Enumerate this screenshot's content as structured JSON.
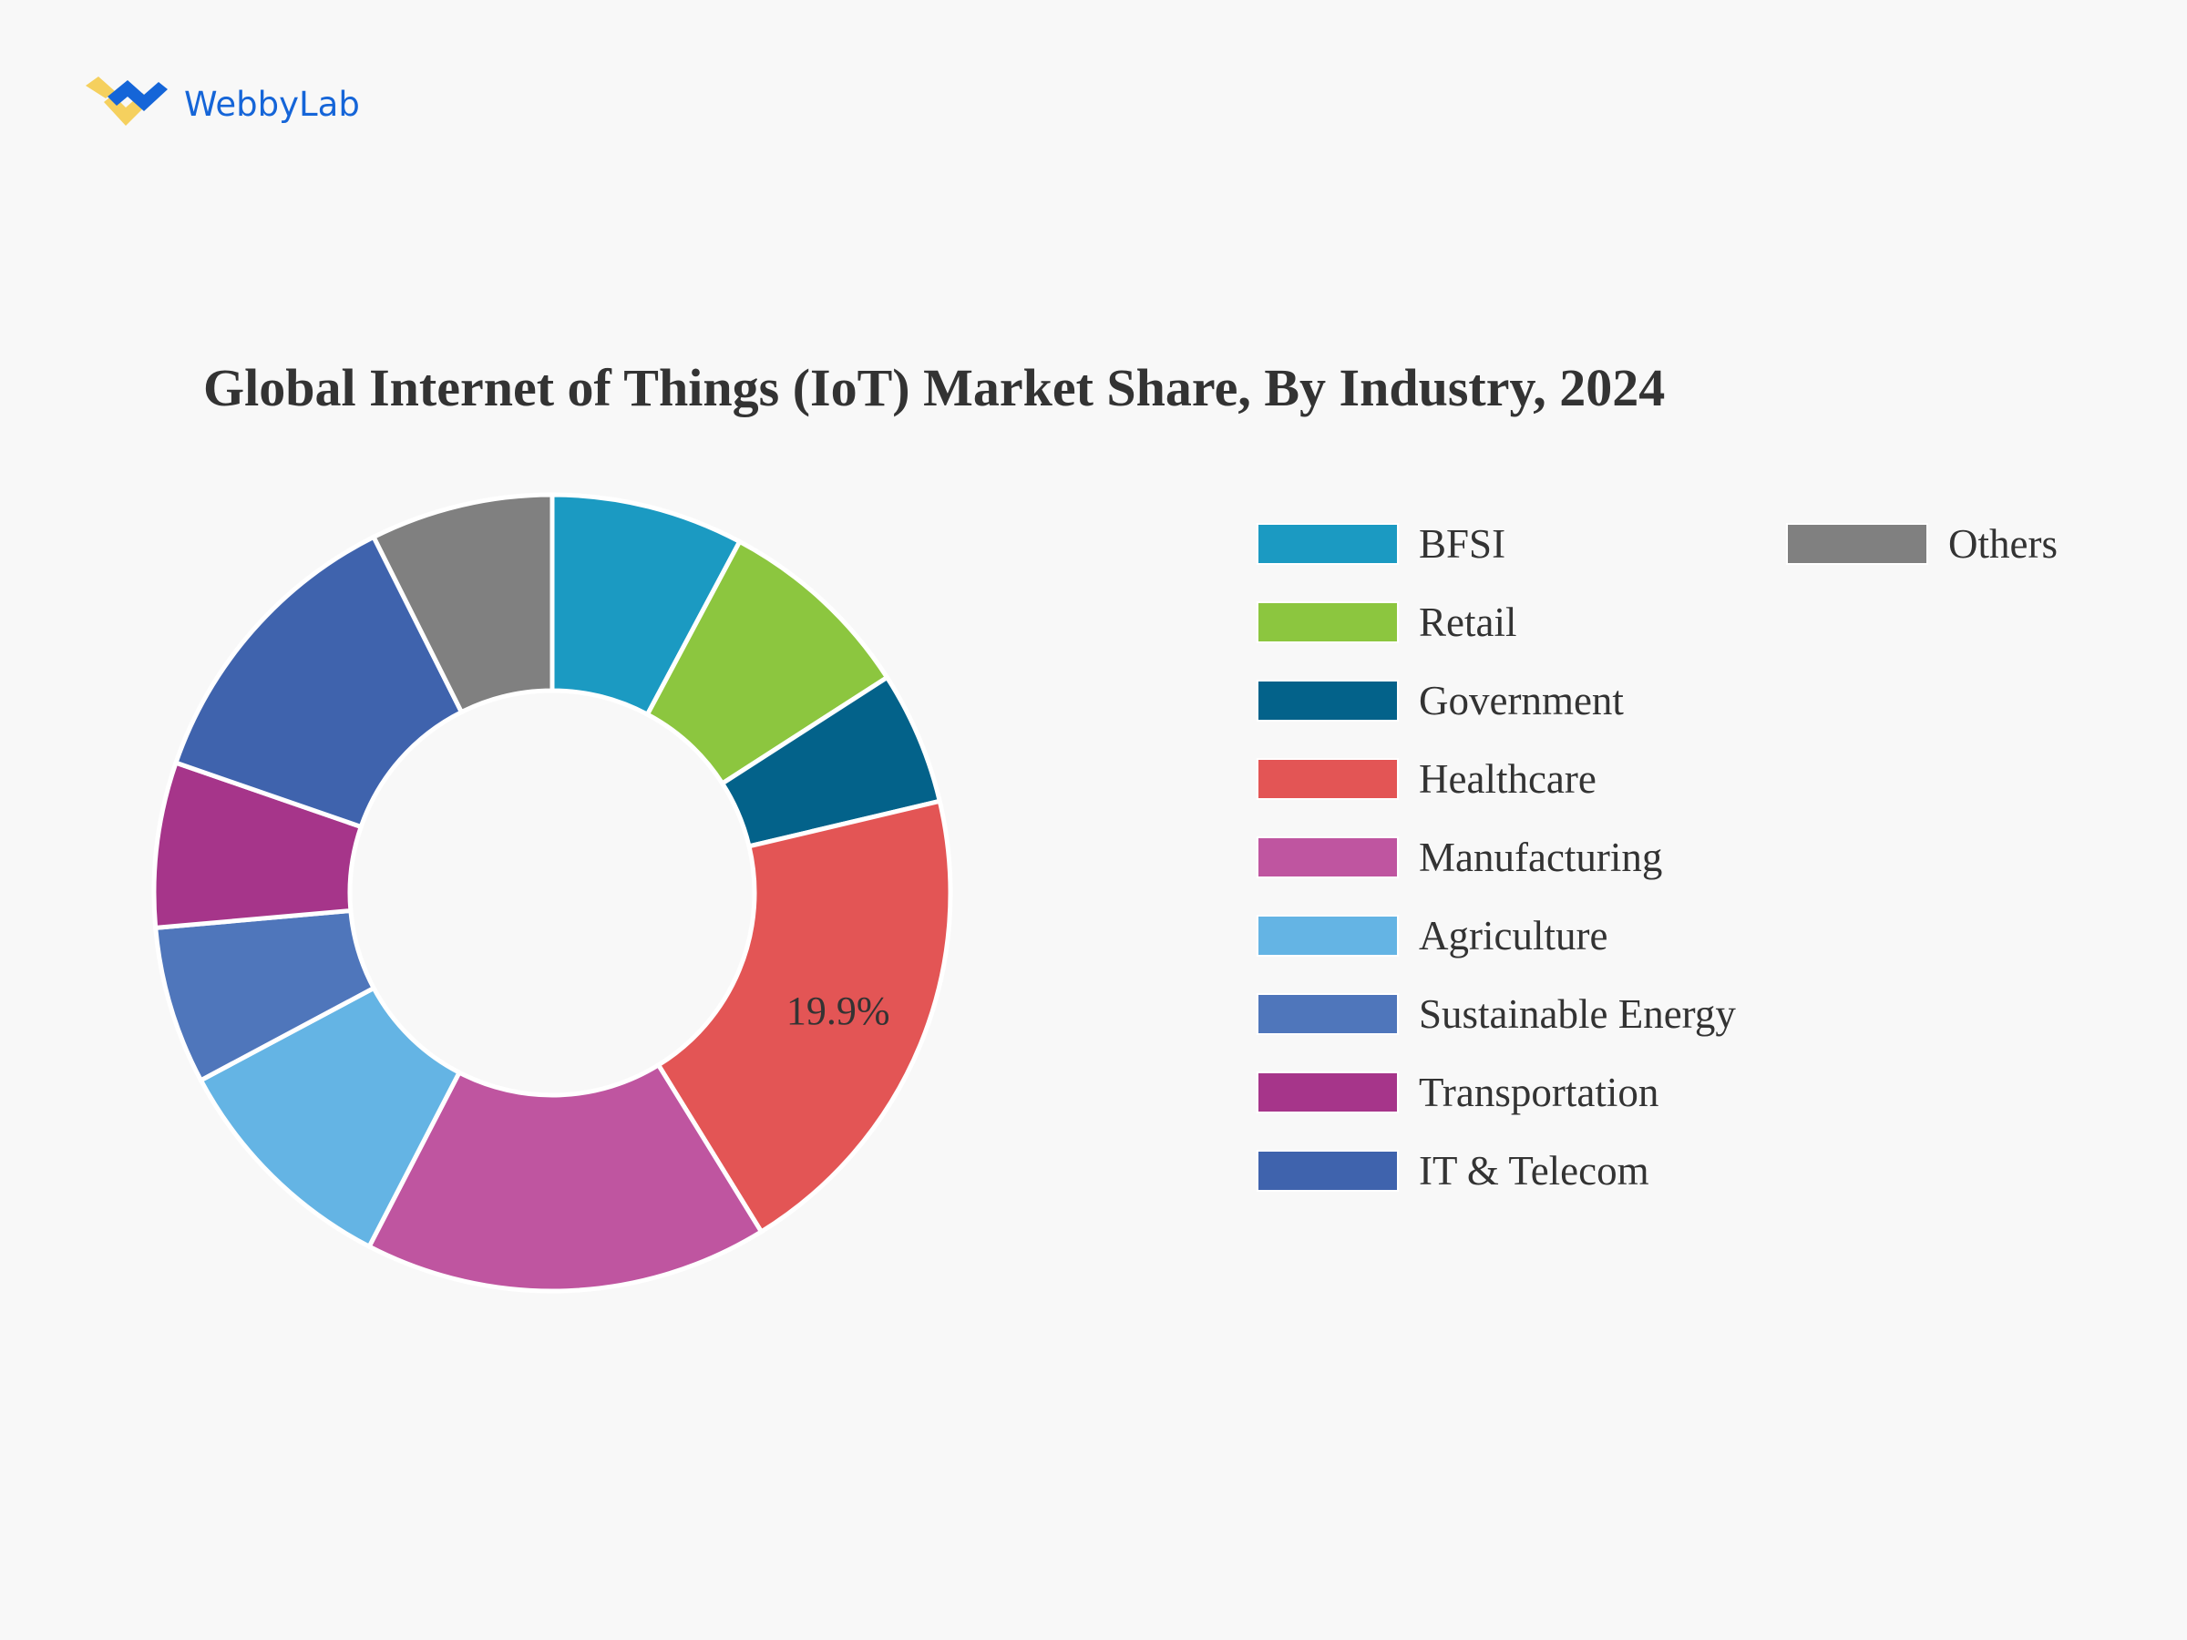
{
  "logo": {
    "text": "WebbyLab"
  },
  "chart_data": {
    "type": "pie",
    "donut": true,
    "title": "Global Internet of Things (IoT) Market Share, By Industry, 2024",
    "categories": [
      "BFSI",
      "Retail",
      "Government",
      "Healthcare",
      "Manufacturing",
      "Agriculture",
      "Sustainable Energy",
      "Transportation",
      "IT & Telecom",
      "Others"
    ],
    "values": [
      7.8,
      8.1,
      5.4,
      19.9,
      16.4,
      9.6,
      6.4,
      6.7,
      12.3,
      7.4
    ],
    "colors": [
      "#1b9ac2",
      "#8cc63f",
      "#03628a",
      "#e35555",
      "#bf55a0",
      "#64b4e4",
      "#4f76bb",
      "#a6358a",
      "#3f63ad",
      "#808080"
    ],
    "data_labels": [
      {
        "category": "Healthcare",
        "text": "19.9%"
      }
    ],
    "legend_position": "right",
    "start": "top",
    "direction": "clockwise"
  }
}
